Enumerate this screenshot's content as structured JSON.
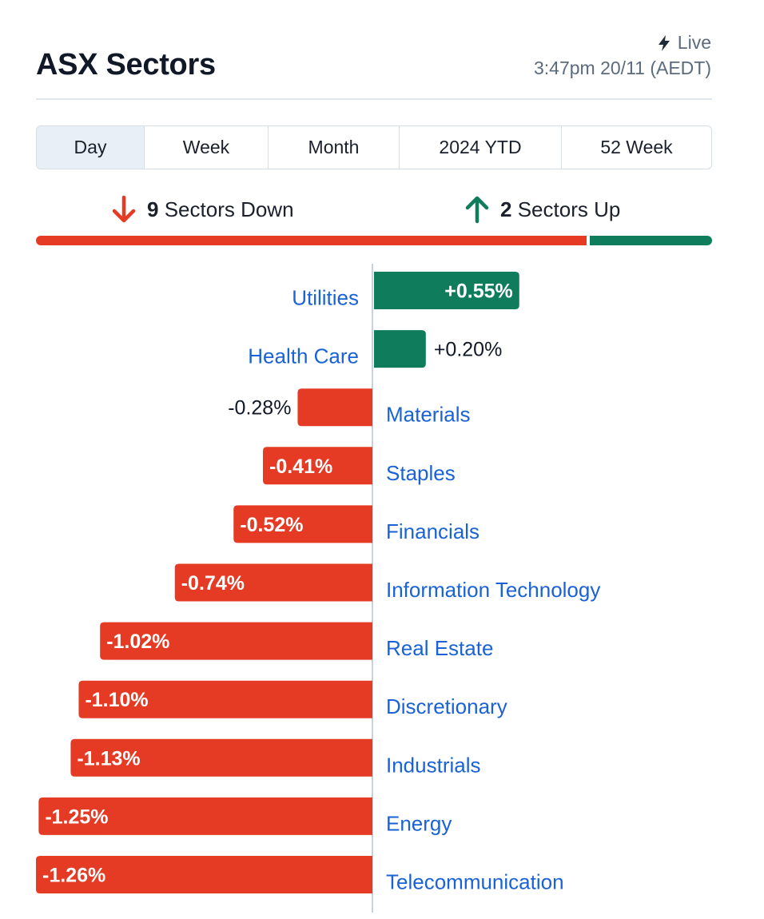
{
  "header": {
    "title": "ASX Sectors",
    "live_label": "Live",
    "live_icon": "lightning-bolt-icon",
    "timestamp": "3:47pm 20/11 (AEDT)"
  },
  "tabs": [
    {
      "label": "Day",
      "active": true
    },
    {
      "label": "Week",
      "active": false
    },
    {
      "label": "Month",
      "active": false
    },
    {
      "label": "2024 YTD",
      "active": false
    },
    {
      "label": "52 Week",
      "active": false
    }
  ],
  "summary": {
    "down_count": "9",
    "down_label": "Sectors Down",
    "down_icon": "arrow-down-icon",
    "up_count": "2",
    "up_label": "Sectors Up",
    "up_icon": "arrow-up-icon"
  },
  "colors": {
    "positive": "#0f7d5b",
    "negative": "#e53b25",
    "link": "#1a62d6",
    "axis": "#c9d1db"
  },
  "chart_data": {
    "type": "bar",
    "orientation": "horizontal-diverging",
    "categories": [
      "Utilities",
      "Health Care",
      "Materials",
      "Staples",
      "Financials",
      "Information Technology",
      "Real Estate",
      "Discretionary",
      "Industrials",
      "Energy",
      "Telecommunication"
    ],
    "values": [
      0.55,
      0.2,
      -0.28,
      -0.41,
      -0.52,
      -0.74,
      -1.02,
      -1.1,
      -1.13,
      -1.25,
      -1.26
    ],
    "value_labels": [
      "+0.55%",
      "+0.20%",
      "-0.28%",
      "-0.41%",
      "-0.52%",
      "-0.74%",
      "-1.02%",
      "-1.10%",
      "-1.13%",
      "-1.25%",
      "-1.26%"
    ],
    "unit": "%",
    "xlim": [
      -1.26,
      1.26
    ]
  }
}
